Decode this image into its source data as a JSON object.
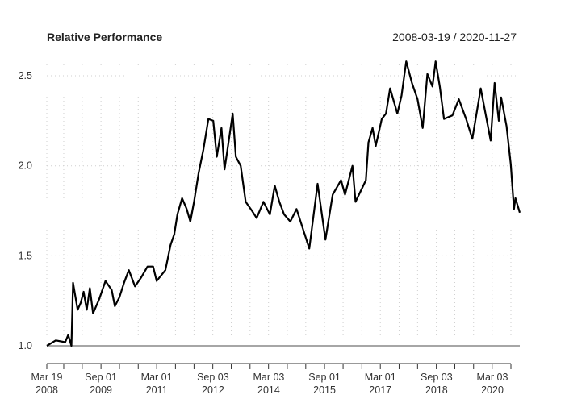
{
  "chart_data": {
    "type": "line",
    "title": "Relative Performance",
    "date_range_label": "2008-03-19 / 2020-11-27",
    "xlabel": "",
    "ylabel": "",
    "ylim": [
      1.0,
      2.6
    ],
    "y_ticks": [
      "1.0",
      "1.5",
      "2.0",
      "2.5"
    ],
    "x_tick_labels": [
      {
        "date": "2008-03-19",
        "line1": "Mar 19",
        "line2": "2008"
      },
      {
        "date": "2009-09-01",
        "line1": "Sep 01",
        "line2": "2009"
      },
      {
        "date": "2011-03-01",
        "line1": "Mar 01",
        "line2": "2011"
      },
      {
        "date": "2012-09-03",
        "line1": "Sep 03",
        "line2": "2012"
      },
      {
        "date": "2014-03-03",
        "line1": "Mar 03",
        "line2": "2014"
      },
      {
        "date": "2015-09-01",
        "line1": "Sep 01",
        "line2": "2015"
      },
      {
        "date": "2017-03-01",
        "line1": "Mar 01",
        "line2": "2017"
      },
      {
        "date": "2018-09-03",
        "line1": "Sep 03",
        "line2": "2018"
      },
      {
        "date": "2020-03-03",
        "line1": "Mar 03",
        "line2": "2020"
      }
    ],
    "grid": true,
    "reference_line": 1.0,
    "line_color": "#000000",
    "reference_color": "#888888",
    "series": [
      {
        "points": [
          [
            "2008-03-19",
            1.0
          ],
          [
            "2008-06-15",
            1.03
          ],
          [
            "2008-09-15",
            1.02
          ],
          [
            "2008-10-15",
            1.06
          ],
          [
            "2008-11-15",
            1.0
          ],
          [
            "2008-12-01",
            1.35
          ],
          [
            "2009-01-15",
            1.2
          ],
          [
            "2009-02-15",
            1.24
          ],
          [
            "2009-03-15",
            1.3
          ],
          [
            "2009-04-15",
            1.2
          ],
          [
            "2009-05-15",
            1.32
          ],
          [
            "2009-06-15",
            1.18
          ],
          [
            "2009-08-15",
            1.26
          ],
          [
            "2009-10-15",
            1.36
          ],
          [
            "2009-12-15",
            1.31
          ],
          [
            "2010-01-15",
            1.22
          ],
          [
            "2010-03-01",
            1.27
          ],
          [
            "2010-04-15",
            1.35
          ],
          [
            "2010-06-01",
            1.42
          ],
          [
            "2010-08-01",
            1.33
          ],
          [
            "2010-10-01",
            1.38
          ],
          [
            "2010-12-01",
            1.44
          ],
          [
            "2011-01-25",
            1.44
          ],
          [
            "2011-03-01",
            1.36
          ],
          [
            "2011-05-25",
            1.42
          ],
          [
            "2011-07-15",
            1.56
          ],
          [
            "2011-08-20",
            1.62
          ],
          [
            "2011-09-20",
            1.73
          ],
          [
            "2011-11-05",
            1.82
          ],
          [
            "2011-12-20",
            1.76
          ],
          [
            "2012-01-25",
            1.69
          ],
          [
            "2012-03-01",
            1.8
          ],
          [
            "2012-04-15",
            1.96
          ],
          [
            "2012-06-01",
            2.09
          ],
          [
            "2012-07-20",
            2.26
          ],
          [
            "2012-09-05",
            2.25
          ],
          [
            "2012-10-10",
            2.05
          ],
          [
            "2012-11-25",
            2.21
          ],
          [
            "2012-12-25",
            1.98
          ],
          [
            "2013-02-10",
            2.16
          ],
          [
            "2013-03-15",
            2.29
          ],
          [
            "2013-04-15",
            2.05
          ],
          [
            "2013-06-01",
            2.0
          ],
          [
            "2013-07-20",
            1.8
          ],
          [
            "2013-09-20",
            1.75
          ],
          [
            "2013-11-05",
            1.71
          ],
          [
            "2014-01-10",
            1.8
          ],
          [
            "2014-03-15",
            1.73
          ],
          [
            "2014-05-01",
            1.89
          ],
          [
            "2014-06-15",
            1.8
          ],
          [
            "2014-08-01",
            1.73
          ],
          [
            "2014-10-01",
            1.69
          ],
          [
            "2014-12-01",
            1.76
          ],
          [
            "2015-04-05",
            1.54
          ],
          [
            "2015-06-25",
            1.9
          ],
          [
            "2015-09-10",
            1.59
          ],
          [
            "2015-11-20",
            1.84
          ],
          [
            "2016-02-10",
            1.92
          ],
          [
            "2016-03-20",
            1.84
          ],
          [
            "2016-06-01",
            2.0
          ],
          [
            "2016-07-01",
            1.8
          ],
          [
            "2016-10-10",
            1.92
          ],
          [
            "2016-11-05",
            2.13
          ],
          [
            "2016-12-15",
            2.21
          ],
          [
            "2017-01-15",
            2.11
          ],
          [
            "2017-03-15",
            2.26
          ],
          [
            "2017-04-25",
            2.29
          ],
          [
            "2017-06-05",
            2.43
          ],
          [
            "2017-08-15",
            2.29
          ],
          [
            "2017-09-25",
            2.39
          ],
          [
            "2017-11-10",
            2.58
          ],
          [
            "2018-01-05",
            2.46
          ],
          [
            "2018-03-01",
            2.37
          ],
          [
            "2018-04-20",
            2.21
          ],
          [
            "2018-06-05",
            2.51
          ],
          [
            "2018-07-25",
            2.44
          ],
          [
            "2018-08-25",
            2.58
          ],
          [
            "2018-10-05",
            2.44
          ],
          [
            "2018-11-15",
            2.26
          ],
          [
            "2019-02-05",
            2.28
          ],
          [
            "2019-04-10",
            2.37
          ],
          [
            "2019-06-20",
            2.26
          ],
          [
            "2019-08-20",
            2.15
          ],
          [
            "2019-11-10",
            2.43
          ],
          [
            "2020-02-15",
            2.14
          ],
          [
            "2020-03-25",
            2.46
          ],
          [
            "2020-05-05",
            2.25
          ],
          [
            "2020-05-28",
            2.38
          ],
          [
            "2020-07-20",
            2.22
          ],
          [
            "2020-08-30",
            2.01
          ],
          [
            "2020-10-01",
            1.76
          ],
          [
            "2020-10-15",
            1.82
          ],
          [
            "2020-11-27",
            1.74
          ]
        ]
      }
    ]
  }
}
